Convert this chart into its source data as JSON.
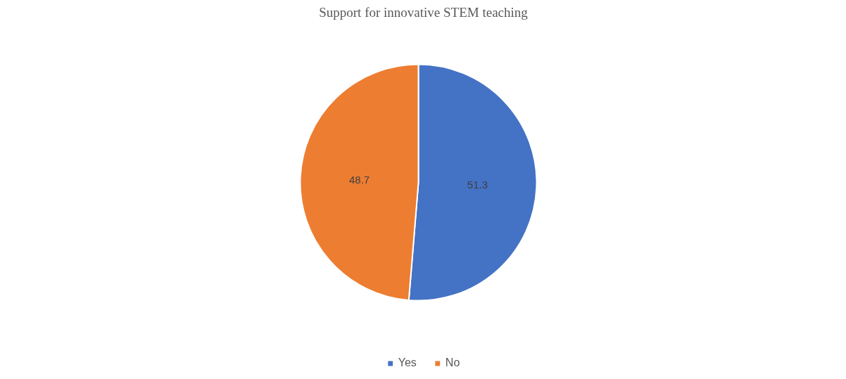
{
  "chart_data": {
    "type": "pie",
    "title": "Support for innovative STEM teaching",
    "categories": [
      "Yes",
      "No"
    ],
    "values": [
      51.3,
      48.7
    ],
    "colors": [
      "#4472c4",
      "#ed7d31"
    ],
    "data_labels": true,
    "legend": "bottom"
  }
}
